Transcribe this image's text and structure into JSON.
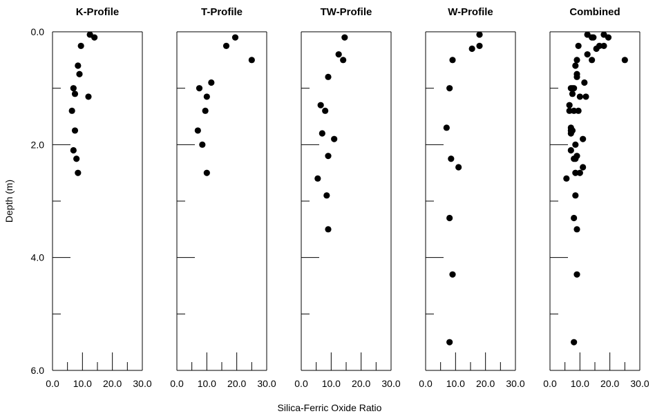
{
  "figure": {
    "xlabel": "Silica-Ferric Oxide Ratio",
    "ylabel": "Depth (m)"
  },
  "chart_data": [
    {
      "type": "scatter",
      "title": "K-Profile",
      "xlim": [
        0,
        30
      ],
      "ylim": [
        6,
        0
      ],
      "xticks": [
        "0.0",
        "10.0",
        "20.0",
        "30.0"
      ],
      "yticks": [
        "0.0",
        "2.0",
        "4.0",
        "6.0"
      ],
      "points": [
        [
          12.5,
          0.05
        ],
        [
          14,
          0.1
        ],
        [
          9.5,
          0.25
        ],
        [
          8.5,
          0.6
        ],
        [
          9,
          0.75
        ],
        [
          7,
          1.0
        ],
        [
          7.5,
          1.1
        ],
        [
          12,
          1.15
        ],
        [
          6.5,
          1.4
        ],
        [
          7.5,
          1.75
        ],
        [
          7,
          2.1
        ],
        [
          8,
          2.25
        ],
        [
          8.5,
          2.5
        ]
      ]
    },
    {
      "type": "scatter",
      "title": "T-Profile",
      "xlim": [
        0,
        30
      ],
      "ylim": [
        6,
        0
      ],
      "xticks": [
        "0.0",
        "10.0",
        "20.0",
        "30.0"
      ],
      "yticks": [],
      "points": [
        [
          19.5,
          0.1
        ],
        [
          16.5,
          0.25
        ],
        [
          25,
          0.5
        ],
        [
          11.5,
          0.9
        ],
        [
          7.5,
          1.0
        ],
        [
          10,
          1.15
        ],
        [
          9.5,
          1.4
        ],
        [
          7,
          1.75
        ],
        [
          8.5,
          2.0
        ],
        [
          10,
          2.5
        ]
      ]
    },
    {
      "type": "scatter",
      "title": "TW-Profile",
      "xlim": [
        0,
        30
      ],
      "ylim": [
        6,
        0
      ],
      "xticks": [
        "0.0",
        "10.0",
        "20.0",
        "30.0"
      ],
      "yticks": [],
      "points": [
        [
          14.5,
          0.1
        ],
        [
          12.5,
          0.4
        ],
        [
          14,
          0.5
        ],
        [
          9,
          0.8
        ],
        [
          6.5,
          1.3
        ],
        [
          8,
          1.4
        ],
        [
          7,
          1.8
        ],
        [
          11,
          1.9
        ],
        [
          9,
          2.2
        ],
        [
          5.5,
          2.6
        ],
        [
          8.5,
          2.9
        ],
        [
          9,
          3.5
        ]
      ]
    },
    {
      "type": "scatter",
      "title": "W-Profile",
      "xlim": [
        0,
        30
      ],
      "ylim": [
        6,
        0
      ],
      "xticks": [
        "0.0",
        "10.0",
        "20.0",
        "30.0"
      ],
      "yticks": [],
      "points": [
        [
          18,
          0.05
        ],
        [
          18,
          0.25
        ],
        [
          15.5,
          0.3
        ],
        [
          9,
          0.5
        ],
        [
          8,
          1.0
        ],
        [
          7,
          1.7
        ],
        [
          8.5,
          2.25
        ],
        [
          11,
          2.4
        ],
        [
          8,
          3.3
        ],
        [
          9,
          4.3
        ],
        [
          8,
          5.5
        ]
      ]
    },
    {
      "type": "scatter",
      "title": "Combined",
      "xlim": [
        0,
        30
      ],
      "ylim": [
        6,
        0
      ],
      "xticks": [
        "0.0",
        "10.0",
        "20.0",
        "30.0"
      ],
      "yticks": [],
      "points": [
        [
          12.5,
          0.05
        ],
        [
          14,
          0.1
        ],
        [
          9.5,
          0.25
        ],
        [
          8.5,
          0.6
        ],
        [
          9,
          0.75
        ],
        [
          7,
          1.0
        ],
        [
          7.5,
          1.1
        ],
        [
          12,
          1.15
        ],
        [
          6.5,
          1.4
        ],
        [
          7.5,
          1.75
        ],
        [
          7,
          2.1
        ],
        [
          8,
          2.25
        ],
        [
          8.5,
          2.5
        ],
        [
          19.5,
          0.1
        ],
        [
          16.5,
          0.25
        ],
        [
          25,
          0.5
        ],
        [
          11.5,
          0.9
        ],
        [
          7.5,
          1.0
        ],
        [
          10,
          1.15
        ],
        [
          9.5,
          1.4
        ],
        [
          7,
          1.75
        ],
        [
          8.5,
          2.0
        ],
        [
          10,
          2.5
        ],
        [
          14.5,
          0.1
        ],
        [
          12.5,
          0.4
        ],
        [
          14,
          0.5
        ],
        [
          9,
          0.8
        ],
        [
          6.5,
          1.3
        ],
        [
          8,
          1.4
        ],
        [
          7,
          1.8
        ],
        [
          11,
          1.9
        ],
        [
          9,
          2.2
        ],
        [
          5.5,
          2.6
        ],
        [
          8.5,
          2.9
        ],
        [
          9,
          3.5
        ],
        [
          18,
          0.05
        ],
        [
          18,
          0.25
        ],
        [
          15.5,
          0.3
        ],
        [
          9,
          0.5
        ],
        [
          8,
          1.0
        ],
        [
          7,
          1.7
        ],
        [
          8.5,
          2.25
        ],
        [
          11,
          2.4
        ],
        [
          8,
          3.3
        ],
        [
          9,
          4.3
        ],
        [
          8,
          5.5
        ]
      ]
    }
  ]
}
